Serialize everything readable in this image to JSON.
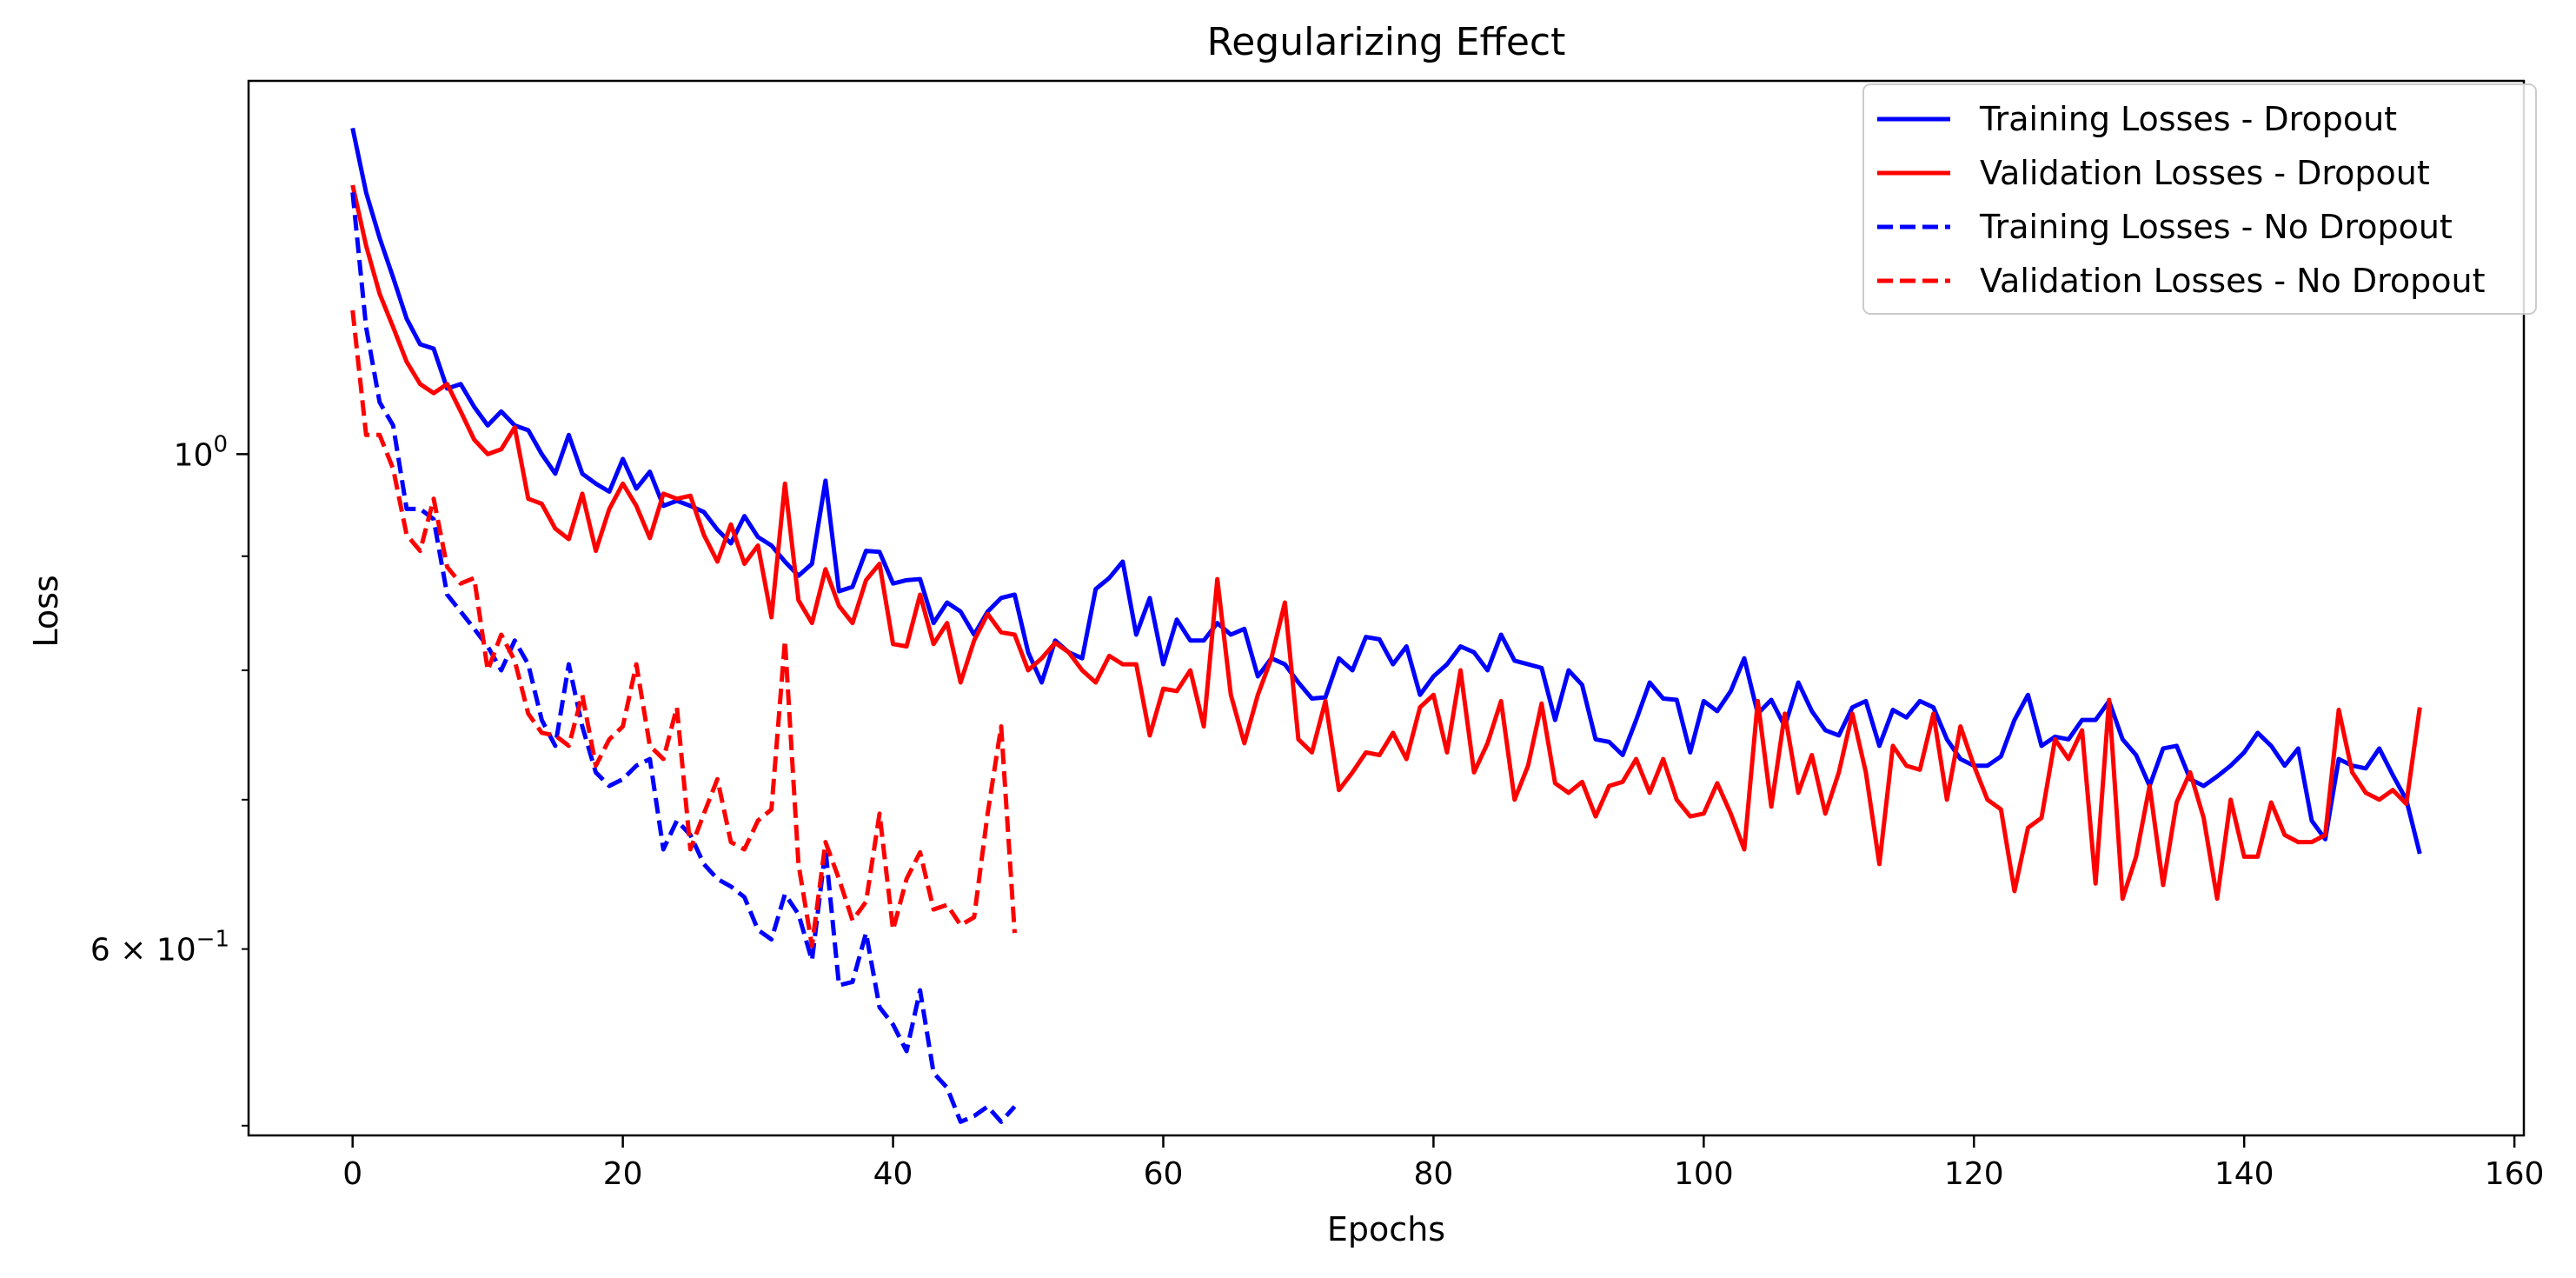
{
  "chart_data": {
    "type": "line",
    "title": "Regularizing Effect",
    "xlabel": "Epochs",
    "ylabel": "Loss",
    "y_scale": "log",
    "xlim": [
      -7.7,
      160.7
    ],
    "ylim": [
      0.495,
      1.47
    ],
    "x_ticks": [
      0,
      20,
      40,
      60,
      80,
      100,
      120,
      140,
      160
    ],
    "y_tick_major": [
      {
        "value": 1.0,
        "base": "10",
        "exponent": "0"
      }
    ],
    "y_tick_labeled_minor": [
      {
        "value": 0.6,
        "coefficient": "6",
        "times": "×",
        "base": "10",
        "exponent": "−1"
      }
    ],
    "y_minor_ticks": [
      0.5,
      0.7,
      0.8,
      0.9
    ],
    "grid": false,
    "legend": {
      "position": "top-right",
      "entries": [
        "Training Losses - Dropout",
        "Validation Losses - Dropout",
        "Training Losses - No Dropout",
        "Validation Losses - No Dropout"
      ]
    },
    "series": [
      {
        "name": "Training Losses - Dropout",
        "color": "#0000ff",
        "linestyle": "solid",
        "x_start": 0,
        "values": [
          1.4,
          1.31,
          1.25,
          1.2,
          1.15,
          1.12,
          1.115,
          1.07,
          1.075,
          1.05,
          1.03,
          1.045,
          1.03,
          1.025,
          1.0,
          0.98,
          1.02,
          0.98,
          0.97,
          0.962,
          0.995,
          0.965,
          0.982,
          0.948,
          0.953,
          0.948,
          0.942,
          0.925,
          0.912,
          0.938,
          0.918,
          0.91,
          0.895,
          0.882,
          0.893,
          0.973,
          0.868,
          0.872,
          0.905,
          0.904,
          0.875,
          0.878,
          0.879,
          0.84,
          0.858,
          0.85,
          0.83,
          0.85,
          0.862,
          0.865,
          0.815,
          0.79,
          0.825,
          0.815,
          0.81,
          0.87,
          0.88,
          0.895,
          0.83,
          0.862,
          0.805,
          0.843,
          0.825,
          0.825,
          0.84,
          0.83,
          0.835,
          0.795,
          0.81,
          0.805,
          0.79,
          0.777,
          0.778,
          0.81,
          0.8,
          0.828,
          0.826,
          0.805,
          0.82,
          0.78,
          0.795,
          0.805,
          0.82,
          0.815,
          0.8,
          0.83,
          0.808,
          0.805,
          0.802,
          0.76,
          0.8,
          0.788,
          0.745,
          0.743,
          0.733,
          0.76,
          0.79,
          0.777,
          0.776,
          0.735,
          0.775,
          0.767,
          0.783,
          0.81,
          0.765,
          0.776,
          0.755,
          0.79,
          0.767,
          0.752,
          0.748,
          0.77,
          0.775,
          0.74,
          0.768,
          0.762,
          0.775,
          0.77,
          0.745,
          0.73,
          0.725,
          0.725,
          0.732,
          0.76,
          0.78,
          0.74,
          0.747,
          0.745,
          0.76,
          0.76,
          0.775,
          0.745,
          0.733,
          0.71,
          0.738,
          0.74,
          0.715,
          0.71,
          0.717,
          0.725,
          0.735,
          0.75,
          0.74,
          0.725,
          0.738,
          0.685,
          0.672,
          0.73,
          0.725,
          0.723,
          0.738,
          0.718,
          0.7,
          0.662
        ]
      },
      {
        "name": "Validation Losses - Dropout",
        "color": "#ff0000",
        "linestyle": "solid",
        "x_start": 0,
        "values": [
          1.32,
          1.24,
          1.18,
          1.14,
          1.1,
          1.075,
          1.065,
          1.075,
          1.045,
          1.015,
          1.0,
          1.005,
          1.028,
          0.955,
          0.95,
          0.926,
          0.916,
          0.96,
          0.905,
          0.945,
          0.97,
          0.948,
          0.917,
          0.96,
          0.955,
          0.958,
          0.92,
          0.895,
          0.93,
          0.893,
          0.91,
          0.845,
          0.97,
          0.86,
          0.84,
          0.888,
          0.855,
          0.84,
          0.878,
          0.893,
          0.822,
          0.82,
          0.865,
          0.822,
          0.84,
          0.79,
          0.825,
          0.848,
          0.832,
          0.83,
          0.8,
          0.81,
          0.823,
          0.815,
          0.8,
          0.79,
          0.812,
          0.805,
          0.805,
          0.748,
          0.785,
          0.783,
          0.8,
          0.755,
          0.879,
          0.78,
          0.742,
          0.78,
          0.81,
          0.858,
          0.745,
          0.735,
          0.775,
          0.707,
          0.72,
          0.735,
          0.733,
          0.75,
          0.73,
          0.77,
          0.78,
          0.735,
          0.8,
          0.72,
          0.742,
          0.775,
          0.7,
          0.725,
          0.773,
          0.712,
          0.705,
          0.713,
          0.688,
          0.71,
          0.713,
          0.73,
          0.705,
          0.73,
          0.7,
          0.688,
          0.69,
          0.712,
          0.69,
          0.665,
          0.775,
          0.695,
          0.765,
          0.705,
          0.733,
          0.69,
          0.72,
          0.765,
          0.72,
          0.655,
          0.74,
          0.725,
          0.722,
          0.765,
          0.7,
          0.755,
          0.725,
          0.7,
          0.693,
          0.637,
          0.68,
          0.687,
          0.745,
          0.73,
          0.752,
          0.642,
          0.776,
          0.632,
          0.66,
          0.71,
          0.641,
          0.698,
          0.72,
          0.687,
          0.632,
          0.7,
          0.66,
          0.66,
          0.698,
          0.675,
          0.67,
          0.67,
          0.675,
          0.768,
          0.72,
          0.705,
          0.7,
          0.707,
          0.697,
          0.77
        ]
      },
      {
        "name": "Training Losses - No Dropout",
        "color": "#0000ff",
        "linestyle": "dashed",
        "x_start": 0,
        "values": [
          1.31,
          1.14,
          1.055,
          1.03,
          0.945,
          0.945,
          0.935,
          0.865,
          0.85,
          0.835,
          0.82,
          0.8,
          0.825,
          0.805,
          0.76,
          0.74,
          0.805,
          0.755,
          0.72,
          0.71,
          0.715,
          0.725,
          0.73,
          0.665,
          0.685,
          0.675,
          0.655,
          0.645,
          0.64,
          0.633,
          0.612,
          0.606,
          0.635,
          0.622,
          0.593,
          0.665,
          0.578,
          0.58,
          0.61,
          0.565,
          0.555,
          0.54,
          0.575,
          0.528,
          0.52,
          0.502,
          0.505,
          0.51,
          0.502,
          0.51
        ]
      },
      {
        "name": "Validation Losses - No Dropout",
        "color": "#ff0000",
        "linestyle": "dashed",
        "x_start": 0,
        "values": [
          1.16,
          1.02,
          1.02,
          0.985,
          0.92,
          0.905,
          0.955,
          0.89,
          0.875,
          0.88,
          0.8,
          0.83,
          0.808,
          0.765,
          0.75,
          0.748,
          0.74,
          0.78,
          0.725,
          0.745,
          0.755,
          0.805,
          0.74,
          0.73,
          0.77,
          0.665,
          0.69,
          0.715,
          0.67,
          0.665,
          0.685,
          0.693,
          0.825,
          0.655,
          0.602,
          0.67,
          0.645,
          0.618,
          0.63,
          0.69,
          0.612,
          0.645,
          0.663,
          0.625,
          0.628,
          0.615,
          0.62,
          0.69,
          0.755,
          0.61
        ]
      }
    ]
  }
}
